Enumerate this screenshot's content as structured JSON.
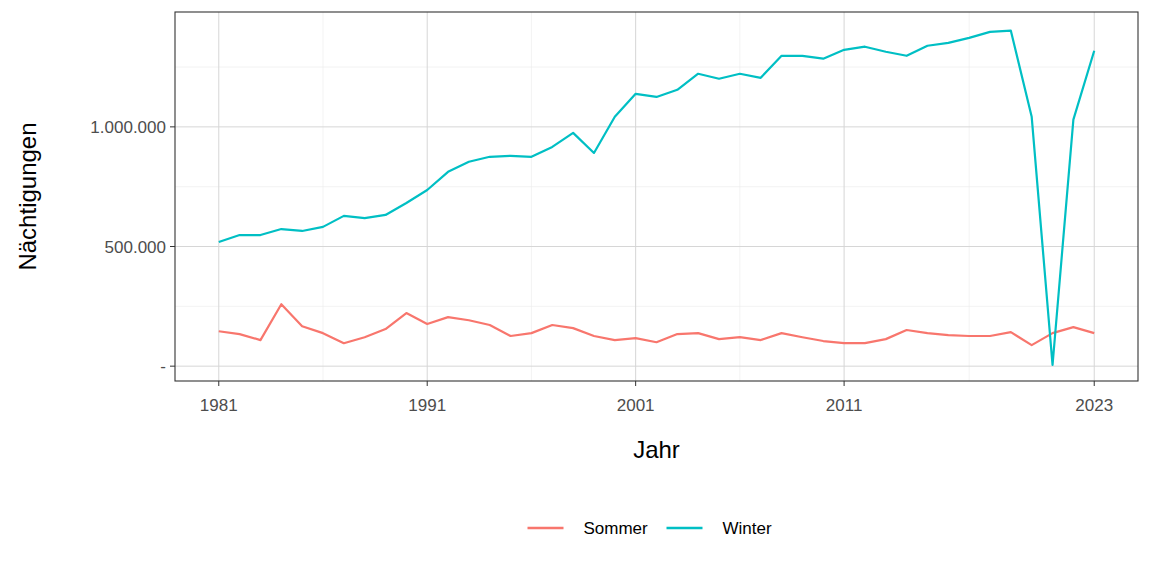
{
  "chart_data": {
    "type": "line",
    "x_label": "Jahr",
    "y_label": "Nächtigungen",
    "x": [
      1981,
      1982,
      1983,
      1984,
      1985,
      1986,
      1987,
      1988,
      1989,
      1990,
      1991,
      1992,
      1993,
      1994,
      1995,
      1996,
      1997,
      1998,
      1999,
      2000,
      2001,
      2002,
      2003,
      2004,
      2005,
      2006,
      2007,
      2008,
      2009,
      2010,
      2011,
      2012,
      2013,
      2014,
      2015,
      2016,
      2017,
      2018,
      2019,
      2020,
      2021,
      2022,
      2023
    ],
    "series": [
      {
        "name": "Sommer",
        "color": "#F8766D",
        "values": [
          146000,
          134000,
          109000,
          259000,
          167000,
          138000,
          96000,
          121000,
          155000,
          222000,
          176000,
          205000,
          192000,
          172000,
          126000,
          138000,
          172000,
          159000,
          126000,
          109000,
          117000,
          100000,
          134000,
          138000,
          113000,
          121000,
          109000,
          138000,
          121000,
          105000,
          96000,
          96000,
          113000,
          151000,
          138000,
          130000,
          126000,
          126000,
          142000,
          88000,
          138000,
          163000,
          138000
        ]
      },
      {
        "name": "Winter",
        "color": "#00BFC4",
        "values": [
          519000,
          548000,
          548000,
          573000,
          565000,
          582000,
          628000,
          619000,
          632000,
          682000,
          736000,
          812000,
          854000,
          875000,
          879000,
          875000,
          916000,
          975000,
          891000,
          1042000,
          1138000,
          1125000,
          1155000,
          1222000,
          1201000,
          1222000,
          1205000,
          1297000,
          1297000,
          1285000,
          1322000,
          1335000,
          1314000,
          1297000,
          1339000,
          1351000,
          1372000,
          1397000,
          1402000,
          1042000,
          5000,
          1030000,
          1318000
        ]
      }
    ],
    "xlim": [
      1978.9,
      2025.1
    ],
    "xticks": [
      1981,
      1991,
      2001,
      2011,
      2023
    ],
    "ylim": [
      -62000,
      1480000
    ],
    "yticks": [
      {
        "value": 0,
        "label": "-"
      },
      {
        "value": 500000,
        "label": "500.000"
      },
      {
        "value": 1000000,
        "label": "1.000.000"
      }
    ],
    "grid": true,
    "legend": "bottom"
  }
}
